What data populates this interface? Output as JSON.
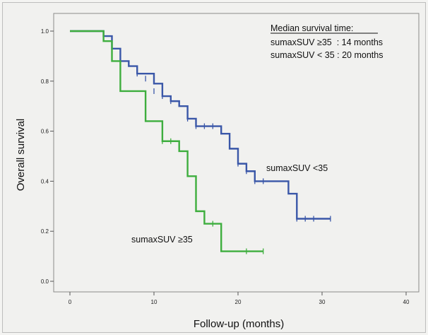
{
  "chart_data": {
    "type": "line",
    "xlabel": "Follow-up (months)",
    "ylabel": "Overall survival",
    "xlim": [
      0,
      40
    ],
    "ylim": [
      0.0,
      1.0
    ],
    "x_ticks": [
      "0",
      "10",
      "20",
      "30",
      "40"
    ],
    "y_ticks": [
      "0.0",
      "0.2",
      "0.4",
      "0.6",
      "0.8",
      "1.0"
    ],
    "grid": false,
    "annotation": {
      "heading": "Median survival time:",
      "lines": [
        "sumaxSUV ≥35  : 14 months",
        "sumaxSUV < 35 : 20 months"
      ]
    },
    "series": [
      {
        "name": "sumaxSUV <35",
        "color": "#3a57a8",
        "steps": [
          [
            0,
            1.0
          ],
          [
            4,
            0.98
          ],
          [
            5,
            0.93
          ],
          [
            6,
            0.88
          ],
          [
            7,
            0.86
          ],
          [
            8,
            0.83
          ],
          [
            10,
            0.79
          ],
          [
            11,
            0.74
          ],
          [
            12,
            0.72
          ],
          [
            13,
            0.7
          ],
          [
            14,
            0.65
          ],
          [
            15,
            0.62
          ],
          [
            18,
            0.59
          ],
          [
            19,
            0.53
          ],
          [
            20,
            0.47
          ],
          [
            21,
            0.44
          ],
          [
            22,
            0.4
          ],
          [
            26,
            0.35
          ],
          [
            27,
            0.25
          ],
          [
            31,
            0.25
          ]
        ],
        "censored": [
          [
            8,
            0.83
          ],
          [
            9,
            0.81
          ],
          [
            10,
            0.76
          ],
          [
            11,
            0.74
          ],
          [
            12,
            0.72
          ],
          [
            14,
            0.65
          ],
          [
            15,
            0.62
          ],
          [
            16,
            0.62
          ],
          [
            17,
            0.62
          ],
          [
            20,
            0.47
          ],
          [
            21,
            0.44
          ],
          [
            22,
            0.4
          ],
          [
            23,
            0.4
          ],
          [
            27,
            0.25
          ],
          [
            28,
            0.25
          ],
          [
            29,
            0.25
          ],
          [
            31,
            0.25
          ]
        ]
      },
      {
        "name": "sumaxSUV ≥35",
        "color": "#3eae3e",
        "steps": [
          [
            0,
            1.0
          ],
          [
            4,
            0.96
          ],
          [
            5,
            0.88
          ],
          [
            6,
            0.76
          ],
          [
            9,
            0.64
          ],
          [
            11,
            0.56
          ],
          [
            13,
            0.52
          ],
          [
            14,
            0.42
          ],
          [
            15,
            0.28
          ],
          [
            16,
            0.23
          ],
          [
            18,
            0.12
          ],
          [
            23,
            0.12
          ]
        ],
        "censored": [
          [
            11,
            0.56
          ],
          [
            12,
            0.56
          ],
          [
            17,
            0.23
          ],
          [
            21,
            0.12
          ],
          [
            23,
            0.12
          ]
        ]
      }
    ],
    "curve_labels": [
      "sumaxSUV <35",
      "sumaxSUV ≥35"
    ]
  }
}
